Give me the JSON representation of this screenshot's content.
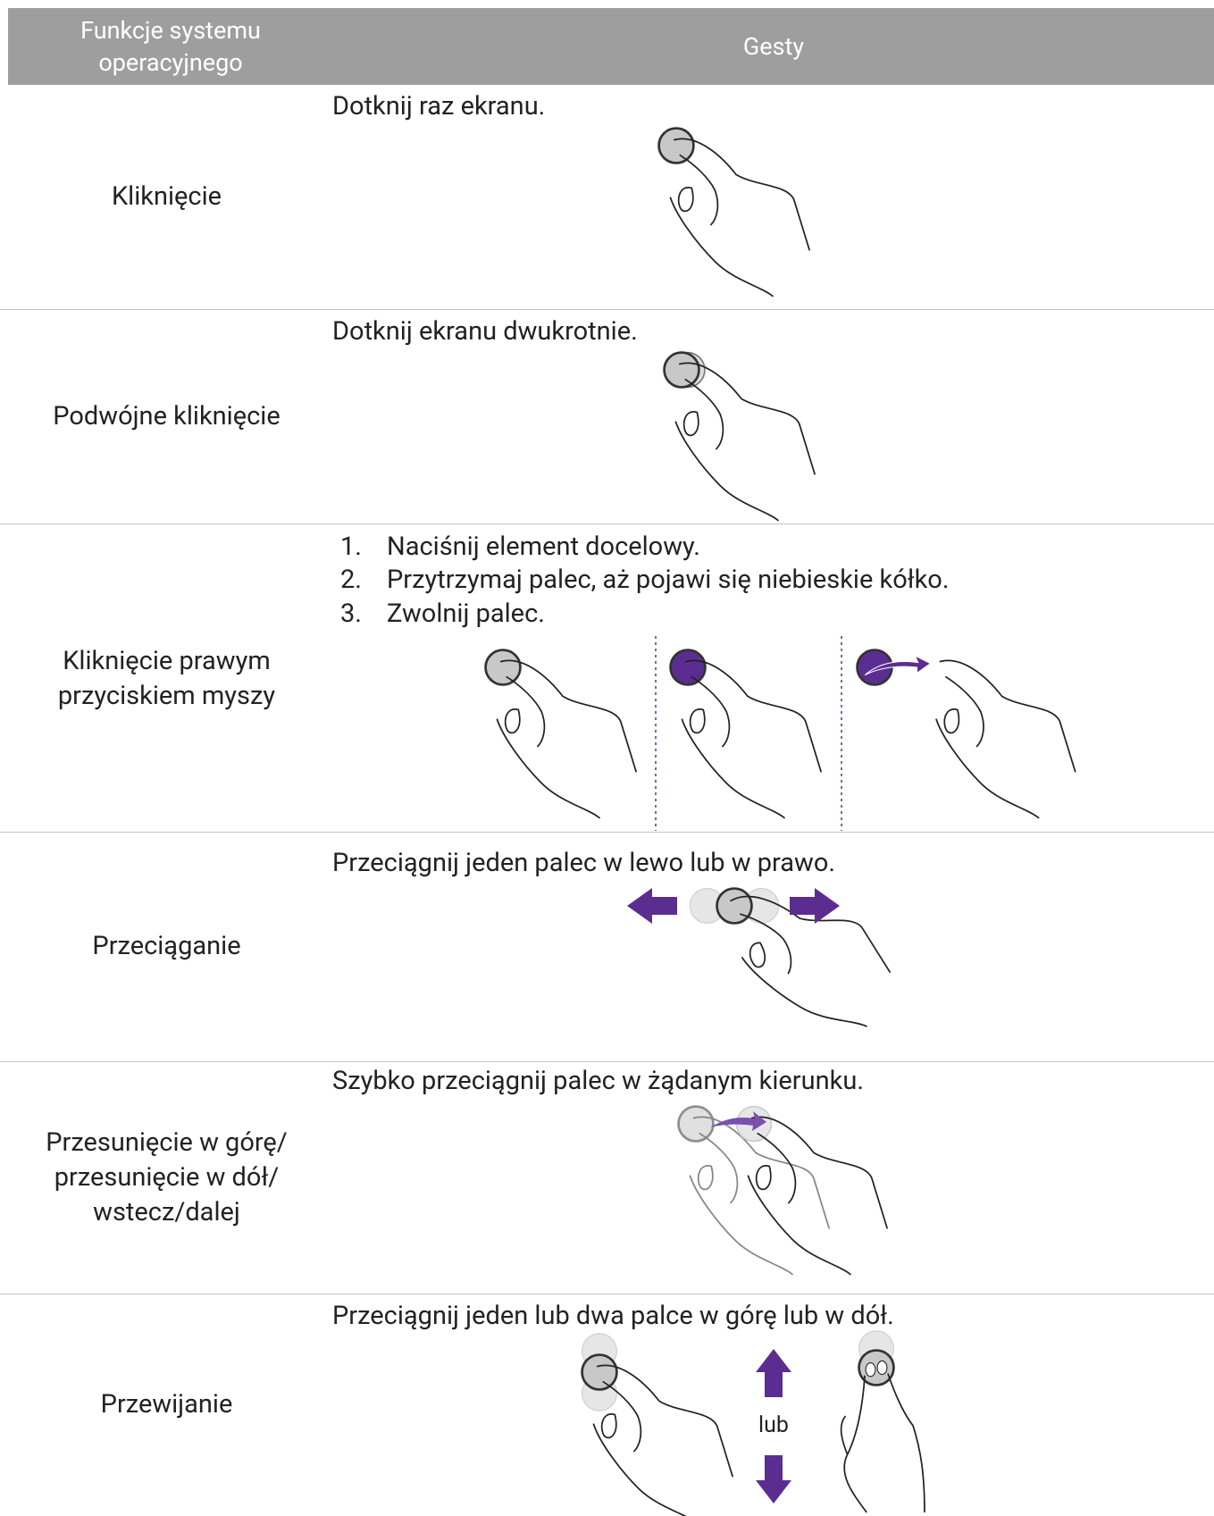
{
  "header": {
    "columns": [
      "Funkcje systemu operacyjnego",
      "Gesty"
    ]
  },
  "rows": [
    {
      "function": "Kliknięcie",
      "gesture": "Dotknij raz ekranu."
    },
    {
      "function": "Podwójne kliknięcie",
      "gesture": "Dotknij ekranu dwukrotnie."
    },
    {
      "function": "Kliknięcie prawym przyciskiem myszy",
      "steps": [
        {
          "number": "1.",
          "text": "Naciśnij element docelowy."
        },
        {
          "number": "2.",
          "text": "Przytrzymaj palec, aż pojawi się niebieskie kółko."
        },
        {
          "number": "3.",
          "text": "Zwolnij palec."
        }
      ]
    },
    {
      "function": "Przeciąganie",
      "gesture": "Przeciągnij jeden palec w lewo lub w prawo."
    },
    {
      "function": "Przesunięcie w górę/ przesunięcie w dół/ wstecz/dalej",
      "gesture": "Szybko przeciągnij palec w żądanym kierunku."
    },
    {
      "function": "Przewijanie",
      "gesture": "Przeciągnij jeden lub dwa palce w górę lub w dół.",
      "or": "lub"
    }
  ]
}
